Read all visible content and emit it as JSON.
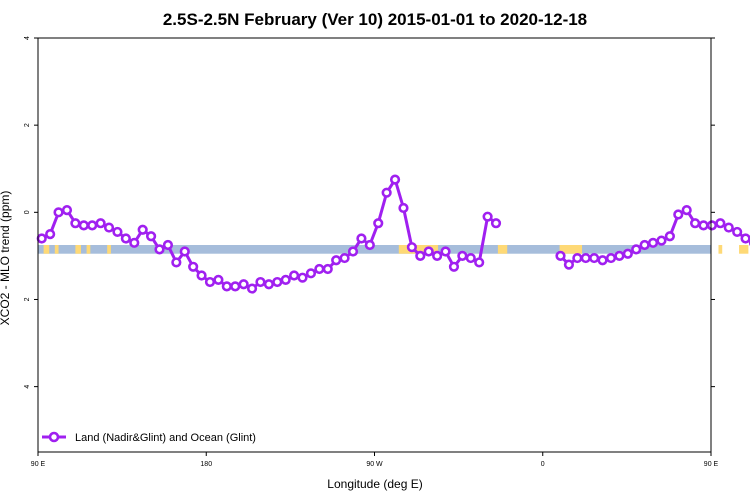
{
  "chart_data": {
    "type": "line",
    "title": "2.5S-2.5N February (Ver 10)   2015-01-01 to 2020-12-18",
    "xlabel": "Longitude (deg E)",
    "ylabel": "XCO2 - MLO trend (ppm)",
    "xlim": [
      90,
      450
    ],
    "ylim": [
      -5.5,
      4
    ],
    "x_ticks": [
      {
        "value": 90,
        "label": "90 E"
      },
      {
        "value": 180,
        "label": "180"
      },
      {
        "value": 270,
        "label": "90 W"
      },
      {
        "value": 360,
        "label": "0"
      },
      {
        "value": 450,
        "label": "90 E"
      },
      {
        "value": 540,
        "label": "180"
      }
    ],
    "y_ticks": [
      {
        "value": 4,
        "label": "4"
      },
      {
        "value": 2,
        "label": "2"
      },
      {
        "value": 0,
        "label": "0"
      },
      {
        "value": -2,
        "label": "2"
      },
      {
        "value": -4,
        "label": "4"
      }
    ],
    "grid": false,
    "legend_position": "bottom-left",
    "land_ocean_band": {
      "y_range": [
        -0.95,
        -0.75
      ],
      "ocean_color": "#a6bddb",
      "land_color": "#fed976",
      "land_segments": [
        [
          93,
          96
        ],
        [
          99,
          101
        ],
        [
          110,
          113
        ],
        [
          116,
          118
        ],
        [
          127,
          129
        ],
        [
          283,
          304
        ],
        [
          336,
          341
        ],
        [
          369,
          381
        ],
        [
          454,
          456
        ],
        [
          465,
          470
        ],
        [
          478,
          480
        ],
        [
          551,
          552
        ],
        [
          560,
          563
        ],
        [
          566,
          568
        ]
      ]
    },
    "series": [
      {
        "name": "Land (Nadir&Glint) and Ocean (Glint)",
        "color": "#a020f0",
        "segments": [
          [
            {
              "x": 92,
              "y": -0.6
            },
            {
              "x": 96.5,
              "y": -0.5
            },
            {
              "x": 101,
              "y": 0.0
            },
            {
              "x": 105.5,
              "y": 0.05
            },
            {
              "x": 110,
              "y": -0.25
            },
            {
              "x": 114.5,
              "y": -0.3
            },
            {
              "x": 119,
              "y": -0.3
            },
            {
              "x": 123.5,
              "y": -0.25
            },
            {
              "x": 128,
              "y": -0.35
            },
            {
              "x": 132.5,
              "y": -0.45
            },
            {
              "x": 137,
              "y": -0.6
            },
            {
              "x": 141.5,
              "y": -0.7
            },
            {
              "x": 146,
              "y": -0.4
            },
            {
              "x": 150.5,
              "y": -0.55
            },
            {
              "x": 155,
              "y": -0.85
            },
            {
              "x": 159.5,
              "y": -0.75
            },
            {
              "x": 164,
              "y": -1.15
            },
            {
              "x": 168.5,
              "y": -0.9
            },
            {
              "x": 173,
              "y": -1.25
            },
            {
              "x": 177.5,
              "y": -1.45
            },
            {
              "x": 182,
              "y": -1.6
            },
            {
              "x": 186.5,
              "y": -1.55
            },
            {
              "x": 191,
              "y": -1.7
            },
            {
              "x": 195.5,
              "y": -1.7
            },
            {
              "x": 200,
              "y": -1.65
            },
            {
              "x": 204.5,
              "y": -1.75
            },
            {
              "x": 209,
              "y": -1.6
            },
            {
              "x": 213.5,
              "y": -1.65
            },
            {
              "x": 218,
              "y": -1.6
            },
            {
              "x": 222.5,
              "y": -1.55
            },
            {
              "x": 227,
              "y": -1.45
            },
            {
              "x": 231.5,
              "y": -1.5
            },
            {
              "x": 236,
              "y": -1.4
            },
            {
              "x": 240.5,
              "y": -1.3
            },
            {
              "x": 245,
              "y": -1.3
            },
            {
              "x": 249.5,
              "y": -1.1
            },
            {
              "x": 254,
              "y": -1.05
            },
            {
              "x": 258.5,
              "y": -0.9
            },
            {
              "x": 263,
              "y": -0.6
            },
            {
              "x": 267.5,
              "y": -0.75
            },
            {
              "x": 272,
              "y": -0.25
            },
            {
              "x": 276.5,
              "y": 0.45
            },
            {
              "x": 281,
              "y": 0.75
            },
            {
              "x": 285.5,
              "y": 0.1
            },
            {
              "x": 290,
              "y": -0.8
            },
            {
              "x": 294.5,
              "y": -1.0
            },
            {
              "x": 299,
              "y": -0.9
            },
            {
              "x": 303.5,
              "y": -1.0
            },
            {
              "x": 308,
              "y": -0.9
            },
            {
              "x": 312.5,
              "y": -1.25
            },
            {
              "x": 317,
              "y": -1.0
            },
            {
              "x": 321.5,
              "y": -1.05
            },
            {
              "x": 326,
              "y": -1.15
            },
            {
              "x": 330.5,
              "y": -0.1
            },
            {
              "x": 335,
              "y": -0.25
            }
          ],
          [
            {
              "x": 369.5,
              "y": -1.0
            },
            {
              "x": 374,
              "y": -1.2
            },
            {
              "x": 378.5,
              "y": -1.05
            },
            {
              "x": 383,
              "y": -1.05
            },
            {
              "x": 387.5,
              "y": -1.05
            },
            {
              "x": 392,
              "y": -1.1
            },
            {
              "x": 396.5,
              "y": -1.05
            },
            {
              "x": 401,
              "y": -1.0
            },
            {
              "x": 405.5,
              "y": -0.95
            },
            {
              "x": 410,
              "y": -0.85
            },
            {
              "x": 414.5,
              "y": -0.75
            },
            {
              "x": 419,
              "y": -0.7
            },
            {
              "x": 423.5,
              "y": -0.65
            },
            {
              "x": 428,
              "y": -0.55
            },
            {
              "x": 432.5,
              "y": -0.05
            },
            {
              "x": 437,
              "y": 0.05
            },
            {
              "x": 441.5,
              "y": -0.25
            },
            {
              "x": 446,
              "y": -0.3
            },
            {
              "x": 450.5,
              "y": -0.3
            },
            {
              "x": 455,
              "y": -0.25
            },
            {
              "x": 459.5,
              "y": -0.35
            },
            {
              "x": 464,
              "y": -0.45
            },
            {
              "x": 468.5,
              "y": -0.6
            },
            {
              "x": 473,
              "y": -0.7
            },
            {
              "x": 477.5,
              "y": -0.4
            },
            {
              "x": 482,
              "y": -0.55
            },
            {
              "x": 486.5,
              "y": -0.85
            },
            {
              "x": 491,
              "y": -0.75
            },
            {
              "x": 495.5,
              "y": -1.15
            },
            {
              "x": 500,
              "y": -0.9
            }
          ]
        ]
      }
    ]
  }
}
